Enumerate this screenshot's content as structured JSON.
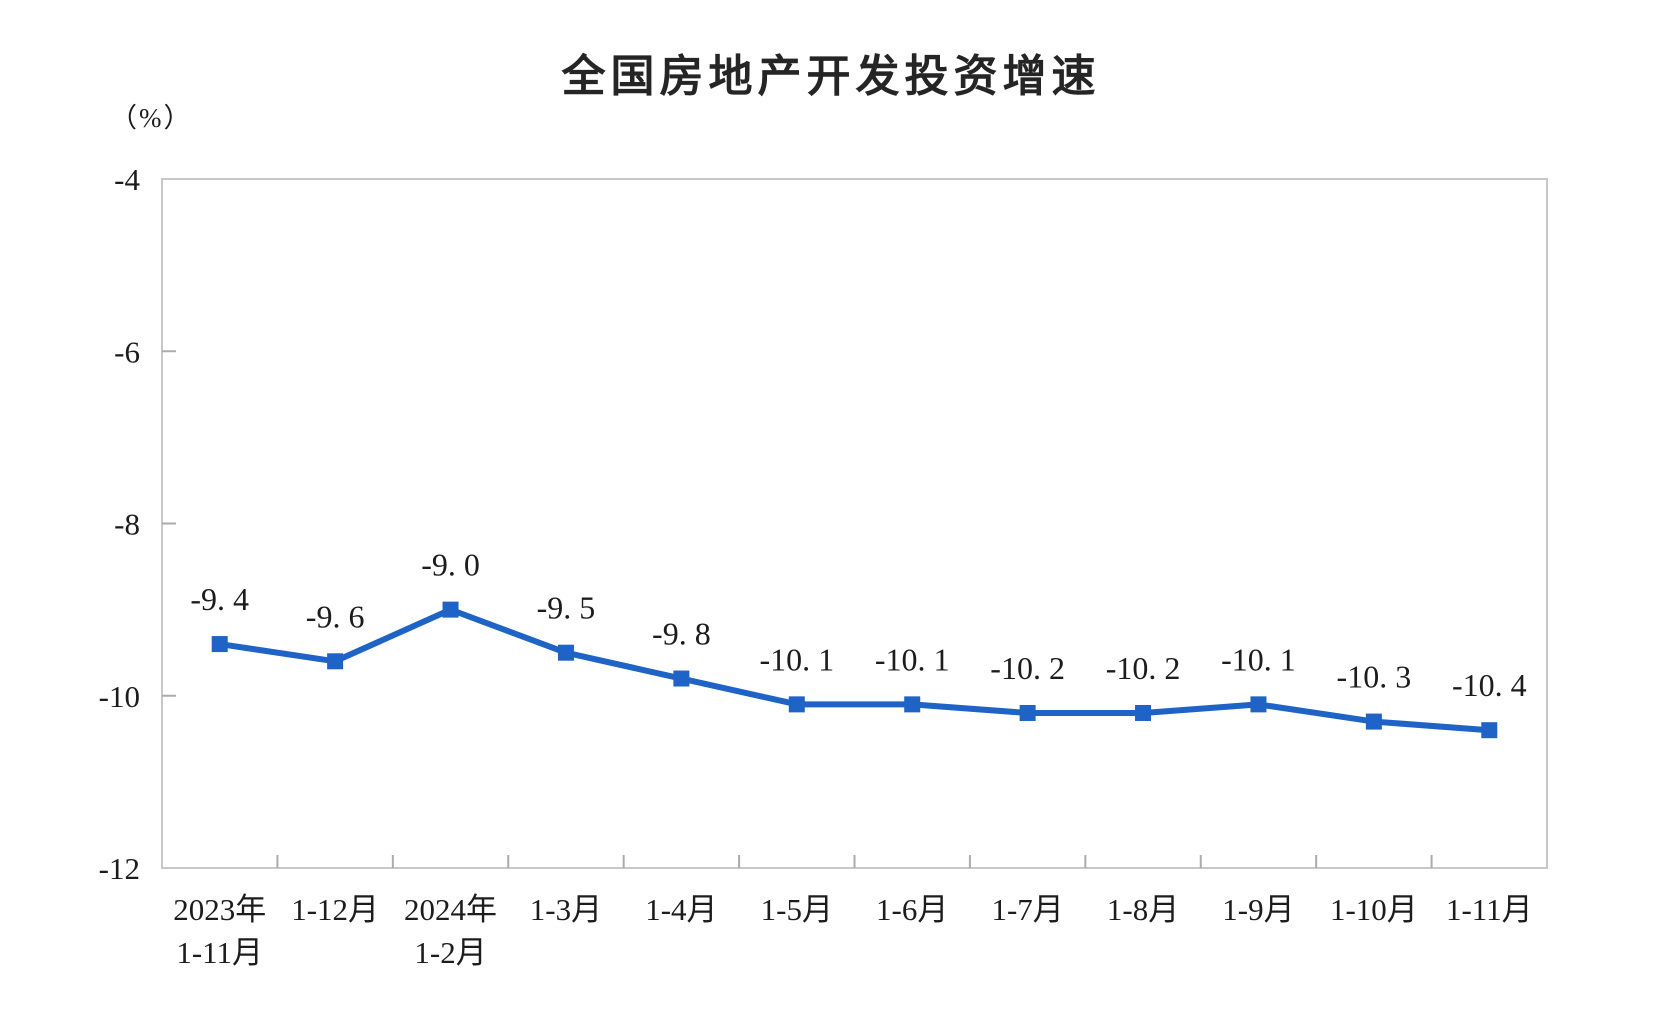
{
  "chart_data": {
    "type": "line",
    "title": "全国房地产开发投资增速",
    "unit_label": "（%）",
    "categories": [
      [
        "2023年",
        "1-11月"
      ],
      [
        "1-12月"
      ],
      [
        "2024年",
        "1-2月"
      ],
      [
        "1-3月"
      ],
      [
        "1-4月"
      ],
      [
        "1-5月"
      ],
      [
        "1-6月"
      ],
      [
        "1-7月"
      ],
      [
        "1-8月"
      ],
      [
        "1-9月"
      ],
      [
        "1-10月"
      ],
      [
        "1-11月"
      ]
    ],
    "values": [
      -9.4,
      -9.6,
      -9.0,
      -9.5,
      -9.8,
      -10.1,
      -10.1,
      -10.2,
      -10.2,
      -10.1,
      -10.3,
      -10.4
    ],
    "point_labels": [
      "-9. 4",
      "-9. 6",
      "-9. 0",
      "-9. 5",
      "-9. 8",
      "-10. 1",
      "-10. 1",
      "-10. 2",
      "-10. 2",
      "-10. 1",
      "-10. 3",
      "-10. 4"
    ],
    "ylim": [
      -12,
      -4
    ],
    "yticks": [
      -4,
      -6,
      -8,
      -10,
      -12
    ],
    "ytick_labels": [
      "-4",
      "-6",
      "-8",
      "-10",
      "-12"
    ],
    "xlabel": "",
    "ylabel": "（%）",
    "grid": "off",
    "legend": "none",
    "marker": "square",
    "colors": {
      "line": "#1e63c5",
      "marker": "#1e63c5",
      "label_text": "#1c1c1c",
      "axis_border": "#c8c8c8",
      "tick_mark": "#ababab",
      "title_text": "#252525"
    }
  }
}
